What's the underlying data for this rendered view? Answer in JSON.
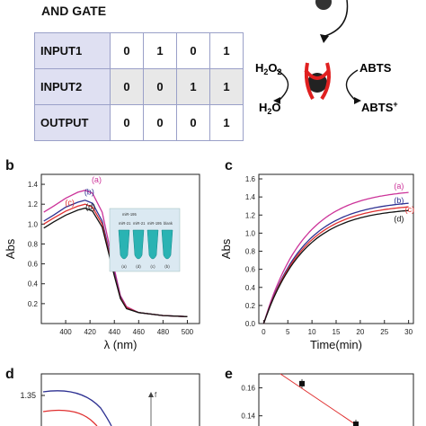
{
  "panel_a": {
    "title": "AND GATE",
    "rows": [
      {
        "label": "INPUT1",
        "values": [
          "0",
          "1",
          "0",
          "1"
        ]
      },
      {
        "label": "INPUT2",
        "values": [
          "0",
          "0",
          "1",
          "1"
        ]
      },
      {
        "label": "OUTPUT",
        "values": [
          "0",
          "0",
          "0",
          "1"
        ]
      }
    ],
    "scheme": {
      "left_top": "H2O2",
      "left_bottom": "H2O",
      "right_top": "ABTS",
      "right_bottom": "ABTS+"
    }
  },
  "panel_letters": {
    "b": "b",
    "c": "c",
    "d": "d",
    "e": "e"
  },
  "inset": {
    "labels_top": [
      "miR-195",
      "miR-21",
      "miR-21",
      "miR-195",
      "blank"
    ],
    "labels_bottom": [
      "(a)",
      "(d)",
      "(c)",
      "(b)"
    ]
  },
  "chart_data": [
    {
      "type": "line",
      "panel": "b",
      "xlabel": "λ (nm)",
      "ylabel": "Abs",
      "xlim": [
        380,
        510
      ],
      "ylim": [
        0.0,
        1.5
      ],
      "xticks": [
        "400",
        "420",
        "440",
        "460",
        "480",
        "500"
      ],
      "yticks": [
        "0.2",
        "0.4",
        "0.6",
        "0.8",
        "1.0",
        "1.2",
        "1.4"
      ],
      "series": [
        {
          "name": "(a)",
          "color": "#cc3399",
          "peak": 1.34,
          "values": [
            [
              382,
              1.12
            ],
            [
              390,
              1.18
            ],
            [
              400,
              1.26
            ],
            [
              410,
              1.32
            ],
            [
              416,
              1.34
            ],
            [
              422,
              1.31
            ],
            [
              430,
              1.12
            ],
            [
              440,
              0.55
            ],
            [
              445,
              0.28
            ],
            [
              450,
              0.17
            ],
            [
              460,
              0.11
            ],
            [
              480,
              0.08
            ],
            [
              500,
              0.07
            ]
          ]
        },
        {
          "name": "(b)",
          "color": "#2e3192",
          "peak": 1.24,
          "values": [
            [
              382,
              1.03
            ],
            [
              390,
              1.09
            ],
            [
              400,
              1.17
            ],
            [
              410,
              1.22
            ],
            [
              416,
              1.24
            ],
            [
              422,
              1.21
            ],
            [
              430,
              1.03
            ],
            [
              440,
              0.51
            ],
            [
              445,
              0.27
            ],
            [
              450,
              0.16
            ],
            [
              460,
              0.11
            ],
            [
              480,
              0.08
            ],
            [
              500,
              0.07
            ]
          ]
        },
        {
          "name": "(c)",
          "color": "#e03030",
          "peak": 1.2,
          "values": [
            [
              382,
              1.0
            ],
            [
              390,
              1.06
            ],
            [
              400,
              1.13
            ],
            [
              410,
              1.18
            ],
            [
              416,
              1.2
            ],
            [
              422,
              1.17
            ],
            [
              430,
              1.0
            ],
            [
              440,
              0.49
            ],
            [
              445,
              0.26
            ],
            [
              450,
              0.16
            ],
            [
              460,
              0.11
            ],
            [
              480,
              0.08
            ],
            [
              500,
              0.07
            ]
          ]
        },
        {
          "name": "(d)",
          "color": "#111111",
          "peak": 1.16,
          "values": [
            [
              382,
              0.96
            ],
            [
              390,
              1.02
            ],
            [
              400,
              1.09
            ],
            [
              410,
              1.14
            ],
            [
              416,
              1.16
            ],
            [
              422,
              1.13
            ],
            [
              430,
              0.97
            ],
            [
              440,
              0.48
            ],
            [
              445,
              0.25
            ],
            [
              450,
              0.15
            ],
            [
              460,
              0.11
            ],
            [
              480,
              0.08
            ],
            [
              500,
              0.07
            ]
          ]
        }
      ]
    },
    {
      "type": "line",
      "panel": "c",
      "xlabel": "Time(min)",
      "ylabel": "Abs",
      "xlim": [
        -1,
        31
      ],
      "ylim": [
        0.0,
        1.65
      ],
      "xticks": [
        "0",
        "5",
        "10",
        "15",
        "20",
        "25",
        "30"
      ],
      "yticks": [
        "0.0",
        "0.2",
        "0.4",
        "0.6",
        "0.8",
        "1.0",
        "1.2",
        "1.4",
        "1.6"
      ],
      "series": [
        {
          "name": "(a)",
          "color": "#cc3399",
          "final": 1.45
        },
        {
          "name": "(b)",
          "color": "#2e3192",
          "final": 1.33
        },
        {
          "name": "(c)",
          "color": "#e03030",
          "final": 1.29
        },
        {
          "name": "(d)",
          "color": "#111111",
          "final": 1.25
        }
      ]
    },
    {
      "type": "line",
      "panel": "d",
      "ytick_visible": "1.35",
      "annotation": "f"
    },
    {
      "type": "scatter",
      "panel": "e",
      "yticks": [
        "0.16",
        "0.14"
      ],
      "points": [
        [
          1,
          0.163
        ],
        [
          2,
          0.134
        ]
      ]
    }
  ]
}
